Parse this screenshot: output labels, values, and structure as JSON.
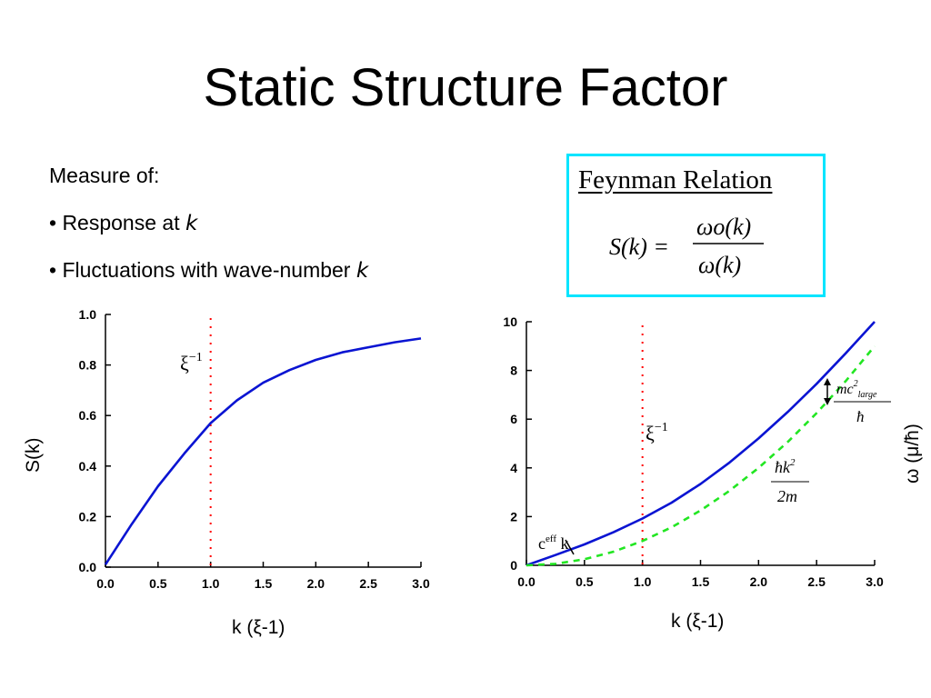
{
  "slide": {
    "title": "Static Structure Factor",
    "bullets": [
      {
        "text": "Measure of:"
      },
      {
        "text": "• Response at ",
        "italic": "k"
      },
      {
        "text": "• Fluctuations with wave-number ",
        "italic": "k"
      }
    ],
    "box": {
      "title": "Feynman Relation",
      "lhs": "S(k) =",
      "numerator": "ωo(k)",
      "denominator": "ω(k)"
    },
    "colors": {
      "curve": "#0a14d2",
      "dashed": "#22e622",
      "marker": "#ff0000",
      "box_border": "#00e5ff"
    }
  },
  "chart_data": [
    {
      "type": "line",
      "xlabel": "k (ξ-1)",
      "ylabel": "S(k)",
      "xlim": [
        0,
        3
      ],
      "ylim": [
        0,
        1
      ],
      "xticks": [
        "0.0",
        "0.5",
        "1.0",
        "1.5",
        "2.0",
        "2.5",
        "3.0"
      ],
      "yticks": [
        "0.0",
        "0.2",
        "0.4",
        "0.6",
        "0.8",
        "1.0"
      ],
      "series": [
        {
          "x": [
            0,
            0.25,
            0.5,
            0.75,
            1.0,
            1.25,
            1.5,
            1.75,
            2.0,
            2.25,
            2.5,
            2.75,
            3.0
          ],
          "y": [
            0.01,
            0.17,
            0.32,
            0.45,
            0.57,
            0.66,
            0.73,
            0.78,
            0.82,
            0.85,
            0.87,
            0.89,
            0.905
          ]
        }
      ],
      "annotations": [
        {
          "text": "ξ",
          "sup": "−1",
          "x": 1.0
        }
      ]
    },
    {
      "type": "line",
      "xlabel": "k (ξ-1)",
      "ylabel": "ω (μ/ħ)",
      "xlim": [
        0,
        3
      ],
      "ylim": [
        0,
        10
      ],
      "xticks": [
        "0.0",
        "0.5",
        "1.0",
        "1.5",
        "2.0",
        "2.5",
        "3.0"
      ],
      "yticks": [
        "0",
        "2",
        "4",
        "6",
        "8",
        "10"
      ],
      "series": [
        {
          "style": "solid",
          "x": [
            0,
            0.25,
            0.5,
            0.75,
            1.0,
            1.25,
            1.5,
            1.75,
            2.0,
            2.25,
            2.5,
            2.75,
            3.0
          ],
          "y": [
            0,
            0.42,
            0.86,
            1.36,
            1.92,
            2.57,
            3.34,
            4.22,
            5.21,
            6.29,
            7.45,
            8.7,
            10.0
          ]
        },
        {
          "style": "dashed",
          "x": [
            0,
            0.25,
            0.5,
            0.75,
            1.0,
            1.25,
            1.5,
            1.75,
            2.0,
            2.25,
            2.5,
            2.75,
            3.0
          ],
          "y": [
            0,
            0.06,
            0.25,
            0.56,
            1.0,
            1.56,
            2.25,
            3.06,
            4.0,
            5.06,
            6.25,
            7.56,
            9.0
          ]
        }
      ],
      "annotations": [
        {
          "text": "ξ",
          "sup": "−1",
          "x": 1.0
        },
        {
          "text": "ceff k"
        },
        {
          "text": "ħk2 / 2m"
        },
        {
          "text": "mc2large / ħ"
        }
      ]
    }
  ]
}
